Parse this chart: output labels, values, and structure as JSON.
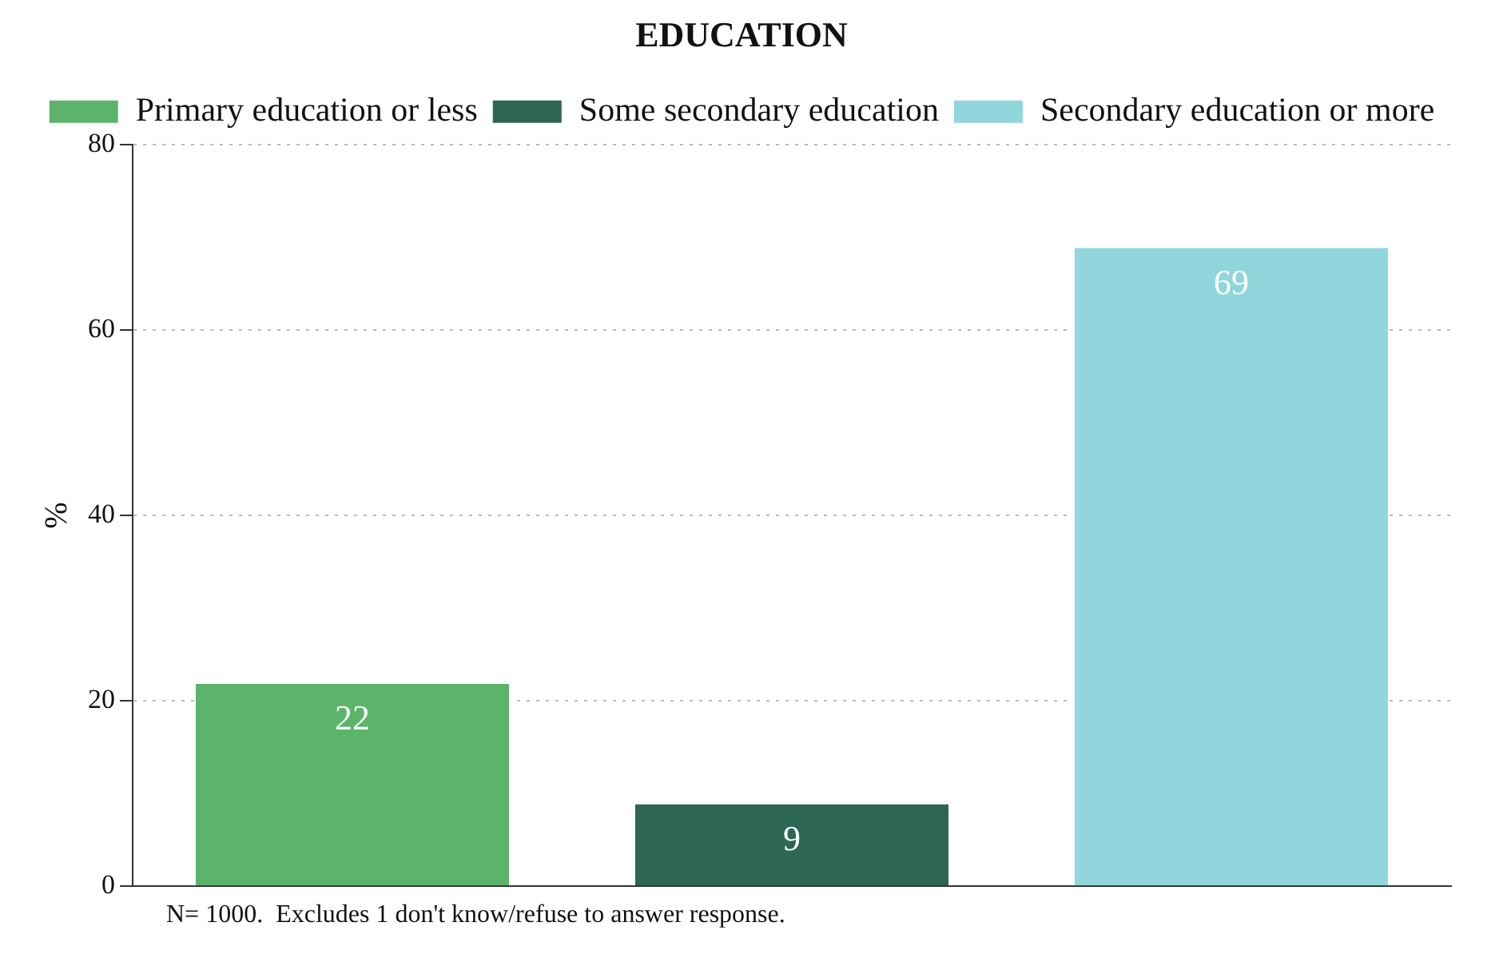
{
  "chart_data": {
    "type": "bar",
    "title": "EDUCATION",
    "ylabel": "%",
    "categories": [
      null,
      null,
      null
    ],
    "series": [
      {
        "name": "Primary education or less",
        "color": "#5cb46a",
        "values": [
          22,
          null,
          null
        ]
      },
      {
        "name": "Some secondary education",
        "color": "#2e6655",
        "values": [
          null,
          9,
          null
        ]
      },
      {
        "name": "Secondary education or more",
        "color": "#90d6dc",
        "values": [
          null,
          null,
          69
        ]
      }
    ],
    "ylim": [
      0,
      80
    ],
    "yticks": [
      0,
      20,
      40,
      60,
      80
    ],
    "grid": "y",
    "legend": "top",
    "data_labels": true,
    "annotations": [
      "N= 1000.  Excludes 1 don't know/refuse to answer response."
    ]
  }
}
